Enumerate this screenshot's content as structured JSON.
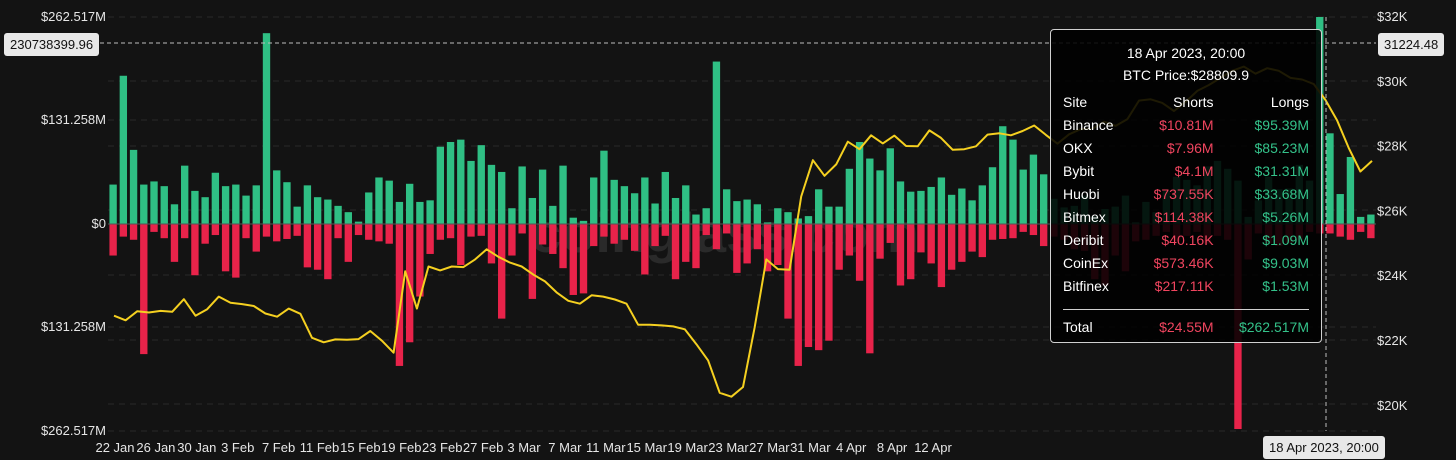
{
  "chart_data": {
    "type": "bar",
    "x_ticks": [
      "22 Jan",
      "26 Jan",
      "30 Jan",
      "3 Feb",
      "7 Feb",
      "11 Feb",
      "15 Feb",
      "19 Feb",
      "23 Feb",
      "27 Feb",
      "3 Mar",
      "7 Mar",
      "11 Mar",
      "15 Mar",
      "19 Mar",
      "23 Mar",
      "27 Mar",
      "31 Mar",
      "4 Apr",
      "8 Apr",
      "12 Apr"
    ],
    "y_left_ticks": [
      "$262.517M",
      "$131.258M",
      "$0",
      "$131.258M",
      "$262.517M"
    ],
    "y_left_range_millions": [
      -262.517,
      262.517
    ],
    "y_right_ticks": [
      "$32K",
      "$30K",
      "$28K",
      "$26K",
      "$24K",
      "$22K",
      "$20K"
    ],
    "y_right_range": [
      19500,
      32000
    ],
    "series": [
      {
        "name": "Longs",
        "color": "#2fbf84",
        "values": [
          50,
          188,
          94,
          50,
          54,
          48,
          25,
          74,
          42,
          34,
          65,
          48,
          50,
          36,
          49,
          242,
          68,
          53,
          22,
          49,
          34,
          31,
          23,
          15,
          3,
          40,
          59,
          55,
          28,
          51,
          28,
          30,
          98,
          104,
          107,
          80,
          100,
          75,
          66,
          20,
          73,
          33,
          69,
          23,
          74,
          8,
          4,
          59,
          93,
          56,
          48,
          39,
          59,
          26,
          66,
          33,
          49,
          12,
          20,
          206,
          44,
          29,
          31,
          25,
          2,
          20,
          15,
          7,
          10,
          44,
          22,
          22,
          70,
          104,
          83,
          68,
          96,
          54,
          41,
          42,
          47,
          59,
          37,
          45,
          30,
          49,
          72,
          124,
          107,
          69,
          88,
          63,
          32,
          21,
          23,
          36,
          10,
          19,
          22,
          36,
          2,
          28,
          15,
          42,
          60,
          56,
          49,
          73,
          80,
          70,
          55,
          9,
          30,
          60,
          44,
          45,
          75,
          55,
          262.517,
          115,
          38,
          85,
          9,
          12
        ]
      },
      {
        "name": "Shorts",
        "color": "#e8234a",
        "values": [
          -40,
          -16,
          -20,
          -165,
          -10,
          -18,
          -48,
          -18,
          -65,
          -25,
          -14,
          -60,
          -68,
          -18,
          -35,
          -16,
          -22,
          -19,
          -15,
          -55,
          -58,
          -70,
          -18,
          -48,
          -14,
          -20,
          -22,
          -25,
          -180,
          -150,
          -92,
          -38,
          -20,
          -18,
          -52,
          -16,
          -15,
          -50,
          -120,
          -40,
          -12,
          -95,
          -26,
          -38,
          -56,
          -90,
          -88,
          -28,
          -16,
          -25,
          -20,
          -34,
          -64,
          -28,
          -15,
          -70,
          -48,
          -56,
          -14,
          -32,
          -12,
          -62,
          -50,
          -32,
          -60,
          -52,
          -120,
          -180,
          -156,
          -160,
          -148,
          -58,
          -40,
          -72,
          -164,
          -44,
          -24,
          -78,
          -70,
          -36,
          -50,
          -80,
          -58,
          -48,
          -35,
          -42,
          -20,
          -19,
          -18,
          -10,
          -14,
          -28,
          -16,
          -20,
          -32,
          -34,
          -70,
          -78,
          -40,
          -60,
          -22,
          -20,
          -15,
          -10,
          -22,
          -15,
          -10,
          -25,
          -15,
          -20,
          -260,
          -45,
          -12,
          -24.55,
          -28,
          -24,
          -20,
          -10,
          -12,
          -12,
          -16,
          -20,
          -10,
          -18
        ]
      },
      {
        "name": "BTC Price",
        "color": "#f5d020",
        "values": [
          22780,
          22640,
          22920,
          22880,
          22930,
          22900,
          23290,
          22780,
          22980,
          23370,
          23180,
          23140,
          23080,
          22850,
          22750,
          23000,
          22840,
          22100,
          21960,
          22050,
          22040,
          22060,
          22310,
          22010,
          21640,
          24150,
          23000,
          24300,
          24180,
          24300,
          24280,
          24520,
          24830,
          24600,
          24420,
          24300,
          24050,
          23840,
          23500,
          23240,
          23150,
          23410,
          23370,
          23280,
          23150,
          22500,
          22500,
          22480,
          22450,
          22360,
          21900,
          21400,
          20400,
          20280,
          20580,
          22410,
          24520,
          24220,
          24200,
          26460,
          27580,
          27100,
          27450,
          28150,
          27920,
          28350,
          28100,
          28340,
          28020,
          28010,
          28500,
          28270,
          27900,
          27920,
          28010,
          28370,
          28410,
          28350,
          28480,
          28650,
          28360,
          28090,
          28380,
          28540,
          28550,
          28770,
          28640,
          28850,
          29420,
          29460,
          29350,
          29100,
          29380,
          29720,
          29900,
          30120,
          30340,
          30470,
          30250,
          30420,
          30340,
          30120,
          30070,
          29930,
          29440,
          28809.9,
          27960,
          27230,
          27560
        ]
      }
    ],
    "crosshair": {
      "left_value": "230738399.96",
      "right_value": "31224.48",
      "x_label": "18 Apr 2023, 20:00"
    },
    "watermark": "coinglass.com",
    "tooltip": {
      "title": "18 Apr 2023, 20:00",
      "price": "BTC Price:$28809.9",
      "headers": [
        "Site",
        "Shorts",
        "Longs"
      ],
      "rows": [
        {
          "site": "Binance",
          "shorts": "$10.81M",
          "longs": "$95.39M"
        },
        {
          "site": "OKX",
          "shorts": "$7.96M",
          "longs": "$85.23M"
        },
        {
          "site": "Bybit",
          "shorts": "$4.1M",
          "longs": "$31.31M"
        },
        {
          "site": "Huobi",
          "shorts": "$737.55K",
          "longs": "$33.68M"
        },
        {
          "site": "Bitmex",
          "shorts": "$114.38K",
          "longs": "$5.26M"
        },
        {
          "site": "Deribit",
          "shorts": "$40.16K",
          "longs": "$1.09M"
        },
        {
          "site": "CoinEx",
          "shorts": "$573.46K",
          "longs": "$9.03M"
        },
        {
          "site": "Bitfinex",
          "shorts": "$217.11K",
          "longs": "$1.53M"
        }
      ],
      "total": {
        "site": "Total",
        "shorts": "$24.55M",
        "longs": "$262.517M"
      }
    }
  }
}
